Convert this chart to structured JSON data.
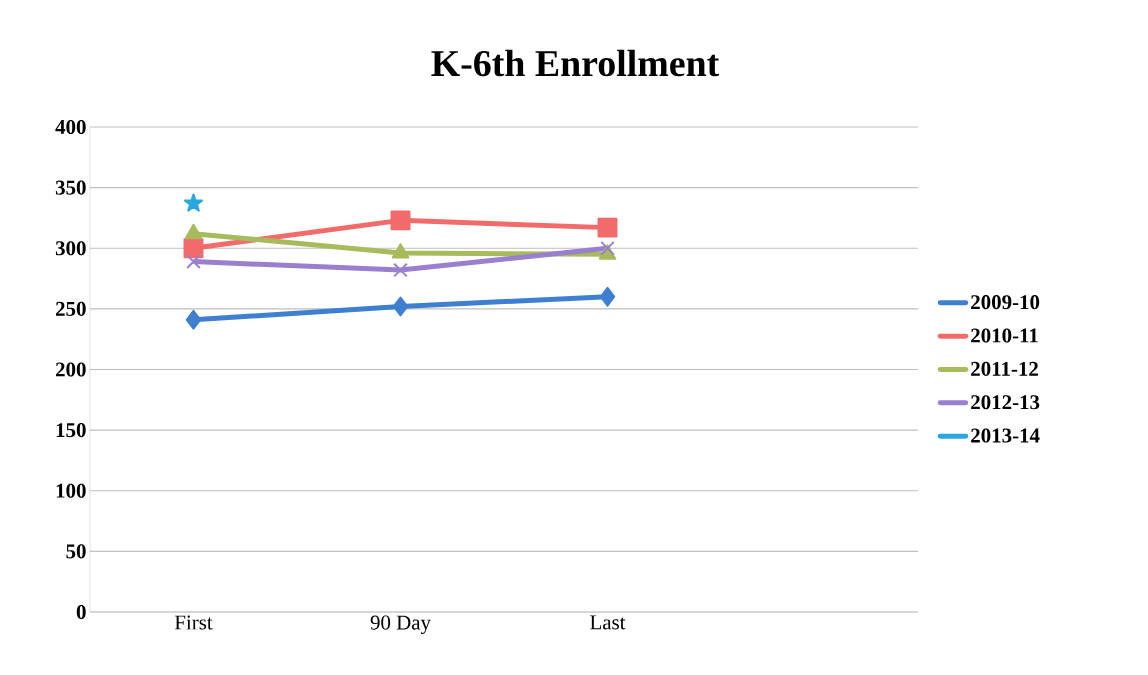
{
  "chart_data": {
    "type": "line",
    "title": "K-6th Enrollment",
    "categories": [
      "First",
      "90 Day",
      "Last",
      null
    ],
    "series": [
      {
        "name": "2009-10",
        "color": "#3f7fd0",
        "marker": "diamond",
        "values": [
          241,
          252,
          260,
          null
        ]
      },
      {
        "name": "2010-11",
        "color": "#f26b6b",
        "marker": "square",
        "values": [
          300,
          323,
          317,
          null
        ]
      },
      {
        "name": "2011-12",
        "color": "#a8bb5c",
        "marker": "triangle",
        "values": [
          312,
          296,
          295,
          null
        ]
      },
      {
        "name": "2012-13",
        "color": "#9a7fce",
        "marker": "cross",
        "values": [
          289,
          282,
          300,
          null
        ]
      },
      {
        "name": "2013-14",
        "color": "#28a8dc",
        "marker": "star",
        "values": [
          337,
          null,
          null,
          null
        ]
      }
    ],
    "ylim": [
      0,
      400
    ],
    "yticks": [
      0,
      50,
      100,
      150,
      200,
      250,
      300,
      350,
      400
    ],
    "grid": "y",
    "legend": "right"
  }
}
